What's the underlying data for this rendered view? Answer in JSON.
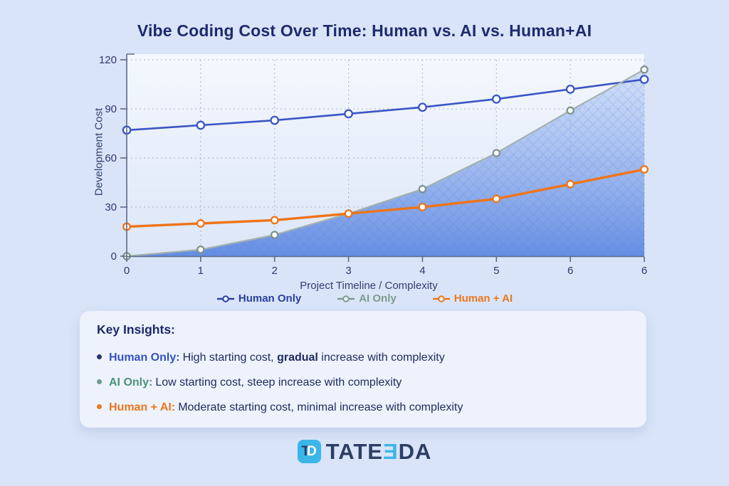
{
  "title": "Vibe Coding Cost Over Time: Human vs. AI vs. Human+AI",
  "colors": {
    "page_background": "#d9e4f8",
    "title_navy": "#1e2a6e",
    "human_only_blue": "#3a55c5",
    "ai_only_gray": "#a4b2ae",
    "ai_only_green_text": "#4f8f7c",
    "human_ai_orange": "#ee7418",
    "area_fill_blue": "#5b86e0",
    "logo_cyan": "#3bb6e9"
  },
  "chart_data": {
    "type": "line",
    "title": "Vibe Coding Cost Over Time: Human vs. AI vs. Human+AI",
    "xlabel": "Project Timeline / Complexity",
    "ylabel": "Development Cost",
    "x_tick_labels": [
      "0",
      "1",
      "2",
      "3",
      "4",
      "5",
      "6",
      "6"
    ],
    "y_ticks": [
      0,
      30,
      60,
      90,
      120
    ],
    "ylim": [
      0,
      120
    ],
    "grid": true,
    "legend_position": "bottom",
    "series": [
      {
        "name": "Human Only",
        "color": "#3a55c5",
        "marker_color": "#3a55c5",
        "line_width": 2.6,
        "marker_r": 5.2,
        "area_fill": false,
        "values": [
          77,
          80,
          83,
          87,
          91,
          96,
          102,
          108
        ]
      },
      {
        "name": "AI Only",
        "color": "#a4b2ae",
        "marker_color": "#7d948e",
        "line_width": 2.2,
        "marker_r": 4.6,
        "area_fill": true,
        "values": [
          0,
          4,
          13,
          26,
          41,
          63,
          89,
          114
        ]
      },
      {
        "name": "Human + AI",
        "color": "#ee7418",
        "marker_color": "#ee7418",
        "line_width": 3.4,
        "marker_r": 4.8,
        "area_fill": false,
        "values": [
          18,
          20,
          22,
          26,
          30,
          35,
          44,
          53
        ]
      }
    ]
  },
  "insights": {
    "heading": "Key Insights:",
    "bullets": [
      {
        "label": "Human Only:",
        "text_before": "High starting cost, ",
        "text_bold": "gradual",
        "text_after": " increase with complexity"
      },
      {
        "label": "AI Only:",
        "text_before": "Low starting cost, steep increase with complexity",
        "text_bold": "",
        "text_after": ""
      },
      {
        "label": "Human + AI:",
        "text_before": "Moderate starting cost, minimal increase with complexity",
        "text_bold": "",
        "text_after": ""
      }
    ]
  },
  "logo": {
    "icon_letter_t": "T",
    "icon_letter_d": "D",
    "word_part1": "TATE",
    "word_part2": "Ǝ",
    "word_part3": "DA"
  }
}
